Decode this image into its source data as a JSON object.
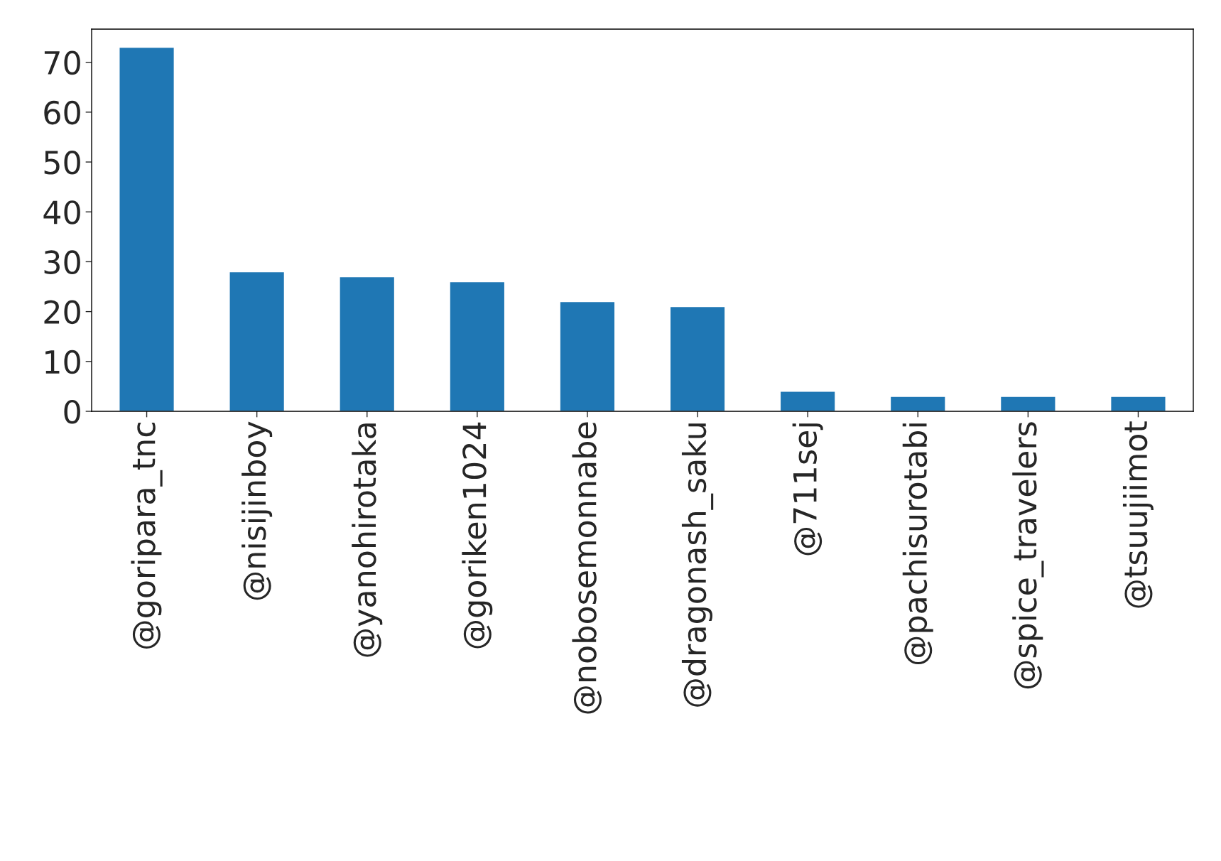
{
  "chart_data": {
    "type": "bar",
    "categories": [
      "@goripara_tnc",
      "@nisijinboy",
      "@yanohirotaka",
      "@goriken1024",
      "@nobosemonnabe",
      "@dragonash_saku",
      "@711sej",
      "@pachisurotabi",
      "@spice_travelers",
      "@tsuujiimot"
    ],
    "values": [
      73,
      28,
      27,
      26,
      22,
      21,
      4,
      3,
      3,
      3
    ],
    "color": "#1f77b4",
    "ylim": [
      0,
      76.65
    ],
    "yticks": [
      0,
      10,
      20,
      30,
      40,
      50,
      60,
      70
    ],
    "grid": false,
    "legend": false
  }
}
